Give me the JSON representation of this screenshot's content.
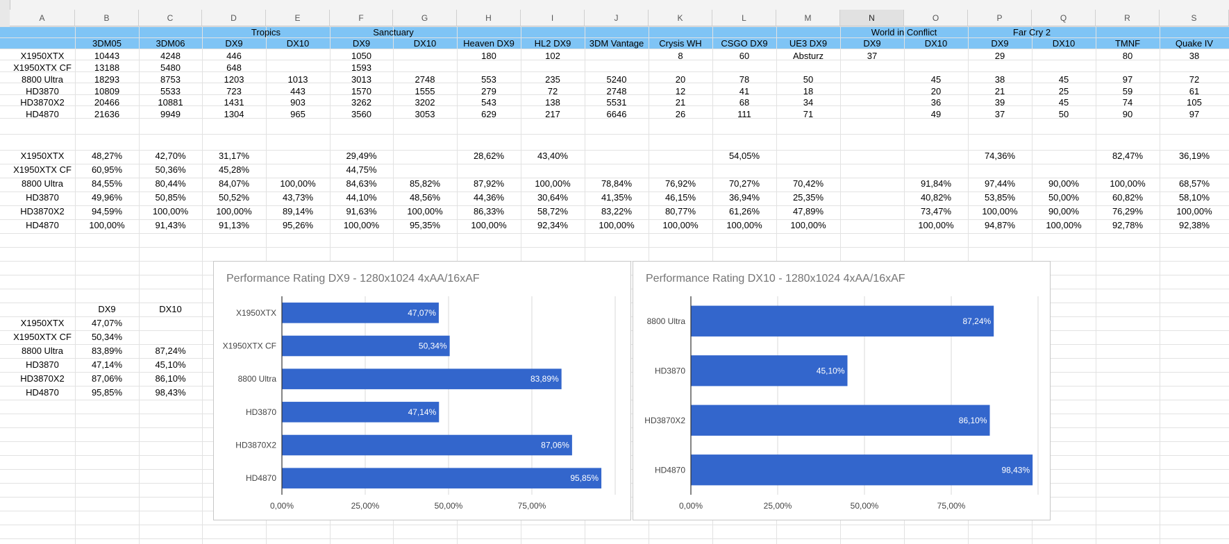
{
  "columns": [
    "A",
    "B",
    "C",
    "D",
    "E",
    "F",
    "G",
    "H",
    "I",
    "J",
    "K",
    "L",
    "M",
    "N",
    "O",
    "P",
    "Q",
    "R",
    "S"
  ],
  "selected_column": "N",
  "header": {
    "groups": [
      {
        "col": "D",
        "span": 2,
        "label": "Tropics"
      },
      {
        "col": "F",
        "span": 2,
        "label": "Sanctuary"
      },
      {
        "col": "N",
        "span": 2,
        "label": "World in Conflict"
      },
      {
        "col": "P",
        "span": 2,
        "label": "Far Cry 2"
      }
    ],
    "sub": {
      "B": "3DM05",
      "C": "3DM06",
      "D": "DX9",
      "E": "DX10",
      "F": "DX9",
      "G": "DX10",
      "H": "Heaven DX9",
      "I": "HL2 DX9",
      "J": "3DM Vantage",
      "K": "Crysis WH",
      "L": "CSGO DX9",
      "M": "UE3 DX9",
      "N": "DX9",
      "O": "DX10",
      "P": "DX9",
      "Q": "DX10",
      "R": "TMNF",
      "S": "Quake IV"
    }
  },
  "raw_rows": [
    {
      "name": "X1950XTX",
      "cells": {
        "B": "10443",
        "C": "4248",
        "D": "446",
        "F": "1050",
        "H": "180",
        "I": "102",
        "K": "8",
        "L": "60",
        "M": "Absturz",
        "N": "37",
        "P": "29",
        "R": "80",
        "S": "38"
      }
    },
    {
      "name": "X1950XTX CF",
      "cells": {
        "B": "13188",
        "C": "5480",
        "D": "648",
        "F": "1593"
      }
    },
    {
      "name": "8800 Ultra",
      "cells": {
        "B": "18293",
        "C": "8753",
        "D": "1203",
        "E": "1013",
        "F": "3013",
        "G": "2748",
        "H": "553",
        "I": "235",
        "J": "5240",
        "K": "20",
        "L": "78",
        "M": "50",
        "O": "45",
        "P": "38",
        "Q": "45",
        "R": "97",
        "S": "72"
      }
    },
    {
      "name": "HD3870",
      "cells": {
        "B": "10809",
        "C": "5533",
        "D": "723",
        "E": "443",
        "F": "1570",
        "G": "1555",
        "H": "279",
        "I": "72",
        "J": "2748",
        "K": "12",
        "L": "41",
        "M": "18",
        "O": "20",
        "P": "21",
        "Q": "25",
        "R": "59",
        "S": "61"
      }
    },
    {
      "name": "HD3870X2",
      "cells": {
        "B": "20466",
        "C": "10881",
        "D": "1431",
        "E": "903",
        "F": "3262",
        "G": "3202",
        "H": "543",
        "I": "138",
        "J": "5531",
        "K": "21",
        "L": "68",
        "M": "34",
        "O": "36",
        "P": "39",
        "Q": "45",
        "R": "74",
        "S": "105"
      }
    },
    {
      "name": "HD4870",
      "cells": {
        "B": "21636",
        "C": "9949",
        "D": "1304",
        "E": "965",
        "F": "3560",
        "G": "3053",
        "H": "629",
        "I": "217",
        "J": "6646",
        "K": "26",
        "L": "111",
        "M": "71",
        "O": "49",
        "P": "37",
        "Q": "50",
        "R": "90",
        "S": "97"
      }
    }
  ],
  "pct_rows": [
    {
      "name": "X1950XTX",
      "cells": {
        "B": "48,27%",
        "C": "42,70%",
        "D": "31,17%",
        "F": "29,49%",
        "H": "28,62%",
        "I": "43,40%",
        "L": "54,05%",
        "P": "74,36%",
        "R": "82,47%",
        "S": "36,19%"
      }
    },
    {
      "name": "X1950XTX CF",
      "cells": {
        "B": "60,95%",
        "C": "50,36%",
        "D": "45,28%",
        "F": "44,75%"
      }
    },
    {
      "name": "8800 Ultra",
      "cells": {
        "B": "84,55%",
        "C": "80,44%",
        "D": "84,07%",
        "E": "100,00%",
        "F": "84,63%",
        "G": "85,82%",
        "H": "87,92%",
        "I": "100,00%",
        "J": "78,84%",
        "K": "76,92%",
        "L": "70,27%",
        "M": "70,42%",
        "O": "91,84%",
        "P": "97,44%",
        "Q": "90,00%",
        "R": "100,00%",
        "S": "68,57%"
      }
    },
    {
      "name": "HD3870",
      "cells": {
        "B": "49,96%",
        "C": "50,85%",
        "D": "50,52%",
        "E": "43,73%",
        "F": "44,10%",
        "G": "48,56%",
        "H": "44,36%",
        "I": "30,64%",
        "J": "41,35%",
        "K": "46,15%",
        "L": "36,94%",
        "M": "25,35%",
        "O": "40,82%",
        "P": "53,85%",
        "Q": "50,00%",
        "R": "60,82%",
        "S": "58,10%"
      }
    },
    {
      "name": "HD3870X2",
      "cells": {
        "B": "94,59%",
        "C": "100,00%",
        "D": "100,00%",
        "E": "89,14%",
        "F": "91,63%",
        "G": "100,00%",
        "H": "86,33%",
        "I": "58,72%",
        "J": "83,22%",
        "K": "80,77%",
        "L": "61,26%",
        "M": "47,89%",
        "O": "73,47%",
        "P": "100,00%",
        "Q": "90,00%",
        "R": "76,29%",
        "S": "100,00%"
      }
    },
    {
      "name": "HD4870",
      "cells": {
        "B": "100,00%",
        "C": "91,43%",
        "D": "91,13%",
        "E": "95,26%",
        "F": "100,00%",
        "G": "95,35%",
        "H": "100,00%",
        "I": "92,34%",
        "J": "100,00%",
        "K": "100,00%",
        "L": "100,00%",
        "M": "100,00%",
        "O": "100,00%",
        "P": "94,87%",
        "Q": "100,00%",
        "R": "92,78%",
        "S": "92,38%"
      }
    }
  ],
  "summary": {
    "headers": [
      "DX9",
      "DX10"
    ],
    "rows": [
      {
        "name": "X1950XTX",
        "dx9": "47,07%",
        "dx10": ""
      },
      {
        "name": "X1950XTX CF",
        "dx9": "50,34%",
        "dx10": ""
      },
      {
        "name": "8800 Ultra",
        "dx9": "83,89%",
        "dx10": "87,24%"
      },
      {
        "name": "HD3870",
        "dx9": "47,14%",
        "dx10": "45,10%"
      },
      {
        "name": "HD3870X2",
        "dx9": "87,06%",
        "dx10": "86,10%"
      },
      {
        "name": "HD4870",
        "dx9": "95,85%",
        "dx10": "98,43%"
      }
    ]
  },
  "chart_data": [
    {
      "type": "bar",
      "orientation": "horizontal",
      "title": "Performance Rating DX9 - 1280x1024 4xAA/16xAF",
      "categories": [
        "X1950XTX",
        "X1950XTX CF",
        "8800 Ultra",
        "HD3870",
        "HD3870X2",
        "HD4870"
      ],
      "values": [
        47.07,
        50.34,
        83.89,
        47.14,
        87.06,
        95.85
      ],
      "labels": [
        "47,07%",
        "50,34%",
        "83,89%",
        "47,14%",
        "87,06%",
        "95,85%"
      ],
      "xlim": [
        0,
        100
      ],
      "xticks": [
        "0,00%",
        "25,00%",
        "50,00%",
        "75,00%"
      ],
      "color": "#3366cc"
    },
    {
      "type": "bar",
      "orientation": "horizontal",
      "title": "Performance Rating DX10 - 1280x1024 4xAA/16xAF",
      "categories": [
        "8800 Ultra",
        "HD3870",
        "HD3870X2",
        "HD4870"
      ],
      "values": [
        87.24,
        45.1,
        86.1,
        98.43
      ],
      "labels": [
        "87,24%",
        "45,10%",
        "86,10%",
        "98,43%"
      ],
      "xlim": [
        0,
        100
      ],
      "xticks": [
        "0,00%",
        "25,00%",
        "50,00%",
        "75,00%"
      ],
      "color": "#3366cc"
    }
  ]
}
